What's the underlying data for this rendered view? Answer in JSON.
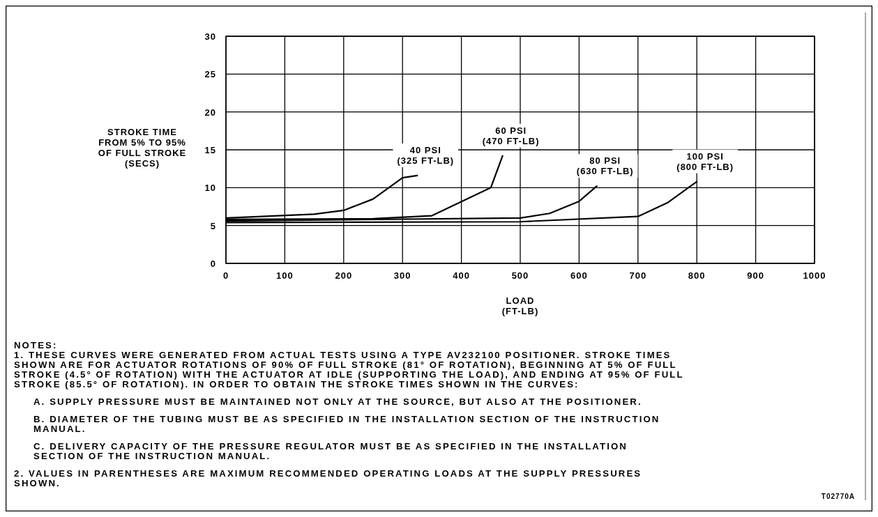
{
  "chart_data": {
    "type": "line",
    "xlabel": "LOAD\n(FT-LB)",
    "ylabel": "STROKE TIME\nFROM 5% TO 95%\nOF FULL STROKE\n(SECS)",
    "xlim": [
      0,
      1000
    ],
    "ylim": [
      0,
      30
    ],
    "xticks": [
      0,
      100,
      200,
      300,
      400,
      500,
      600,
      700,
      800,
      900,
      1000
    ],
    "yticks": [
      0,
      5,
      10,
      15,
      20,
      25,
      30
    ],
    "grid": true,
    "marker": "none",
    "line_style": "solid",
    "series": [
      {
        "name": "40 PSI\n(325 FT-LB)",
        "color": "#000000",
        "x": [
          0,
          150,
          200,
          250,
          300,
          325
        ],
        "values": [
          6.0,
          6.5,
          7.0,
          8.5,
          11.3,
          11.6
        ]
      },
      {
        "name": "60 PSI\n(470 FT-LB)",
        "color": "#000000",
        "x": [
          0,
          250,
          350,
          450,
          470
        ],
        "values": [
          5.8,
          5.9,
          6.3,
          10.0,
          14.2
        ]
      },
      {
        "name": "80 PSI\n(630 FT-LB)",
        "color": "#000000",
        "x": [
          0,
          500,
          550,
          600,
          630
        ],
        "values": [
          5.6,
          6.0,
          6.6,
          8.2,
          10.2
        ]
      },
      {
        "name": "100 PSI\n(800 FT-LB)",
        "color": "#000000",
        "x": [
          0,
          500,
          700,
          750,
          800
        ],
        "values": [
          5.4,
          5.5,
          6.2,
          8.0,
          10.8
        ]
      }
    ],
    "annotations": [
      "NOTES:\n1. THESE CURVES WERE GENERATED FROM ACTUAL TESTS USING A TYPE AV232100 POSITIONER.  STROKE TIMES\nSHOWN ARE FOR ACTUATOR ROTATIONS OF 90% OF FULL STROKE (81° OF ROTATION), BEGINNING AT 5% OF FULL\nSTROKE (4.5° OF ROTATION) WITH THE ACTUATOR AT IDLE (SUPPORTING THE LOAD), AND ENDING AT 95% OF FULL\nSTROKE (85.5° OF ROTATION). IN ORDER TO OBTAIN THE STROKE TIMES SHOWN IN THE CURVES:",
      "A. SUPPLY PRESSURE MUST BE MAINTAINED NOT ONLY AT THE SOURCE, BUT ALSO AT THE POSITIONER.",
      "B. DIAMETER OF THE TUBING MUST BE AS SPECIFIED IN THE INSTALLATION SECTION OF THE INSTRUCTION\nMANUAL.",
      "C. DELIVERY CAPACITY OF THE PRESSURE REGULATOR MUST BE AS SPECIFIED IN THE INSTALLATION\nSECTION OF THE INSTRUCTION MANUAL.",
      "2. VALUES IN PARENTHESES ARE MAXIMUM RECOMMENDED OPERATING LOADS AT THE SUPPLY PRESSURES\nSHOWN.",
      "T02770A"
    ]
  }
}
